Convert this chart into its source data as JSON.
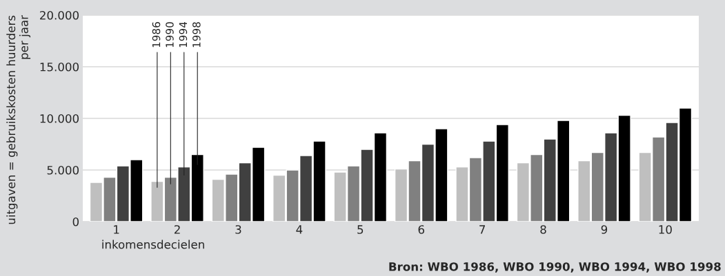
{
  "chart_data": {
    "type": "bar",
    "ylabel": "uitgaven = gebruikskosten huurders\nper jaar",
    "xlabel": "inkomensdecielen",
    "categories": [
      "1",
      "2",
      "3",
      "4",
      "5",
      "6",
      "7",
      "8",
      "9",
      "10"
    ],
    "series": [
      {
        "name": "1986",
        "color": "#bfbfbf",
        "values": [
          3800,
          3900,
          4100,
          4500,
          4800,
          5100,
          5300,
          5700,
          5900,
          6700
        ]
      },
      {
        "name": "1990",
        "color": "#808080",
        "values": [
          4300,
          4300,
          4600,
          5000,
          5400,
          5900,
          6200,
          6500,
          6700,
          8200
        ]
      },
      {
        "name": "1994",
        "color": "#404040",
        "values": [
          5400,
          5300,
          5700,
          6400,
          7000,
          7500,
          7800,
          8000,
          8600,
          9600
        ]
      },
      {
        "name": "1998",
        "color": "#000000",
        "values": [
          6000,
          6500,
          7200,
          7800,
          8600,
          9000,
          9400,
          9800,
          10300,
          11000
        ]
      }
    ],
    "ylim": [
      0,
      20000
    ],
    "yticks": [
      {
        "value": 0,
        "label": "0"
      },
      {
        "value": 5000,
        "label": "5.000"
      },
      {
        "value": 10000,
        "label": "10.000"
      },
      {
        "value": 15000,
        "label": "15.000"
      },
      {
        "value": 20000,
        "label": "20.000"
      }
    ],
    "grid": "y",
    "legend": false,
    "annotations": [
      "Bron: WBO 1986, WBO 1990, WBO 1994, WBO 1998"
    ]
  }
}
